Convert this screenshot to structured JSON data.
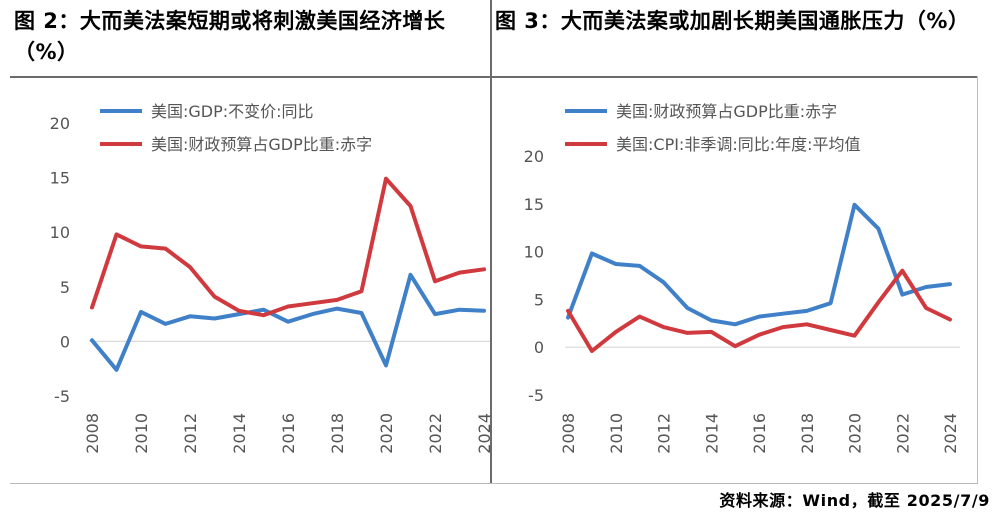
{
  "source": "资料来源：Wind，截至 2025/7/9",
  "chart_data": [
    {
      "type": "line",
      "title": "图 2：大而美法案短期或将刺激美国经济增长（%）",
      "xlabel": "",
      "ylabel": "",
      "x": [
        2008,
        2009,
        2010,
        2011,
        2012,
        2013,
        2014,
        2015,
        2016,
        2017,
        2018,
        2019,
        2020,
        2021,
        2022,
        2023,
        2024
      ],
      "xticks": [
        "2008",
        "2010",
        "2012",
        "2014",
        "2016",
        "2018",
        "2020",
        "2022",
        "2024"
      ],
      "ylim": [
        -5,
        20
      ],
      "yticks": [
        "-5",
        "0",
        "5",
        "10",
        "15",
        "20"
      ],
      "grid": false,
      "legend": "top-left",
      "series": [
        {
          "name": "美国:GDP:不变价:同比",
          "color": "#3F80C8",
          "values": [
            0.1,
            -2.6,
            2.7,
            1.6,
            2.3,
            2.1,
            2.5,
            2.9,
            1.8,
            2.5,
            3.0,
            2.6,
            -2.2,
            6.1,
            2.5,
            2.9,
            2.8
          ]
        },
        {
          "name": "美国:财政预算占GDP比重:赤字",
          "color": "#D0393E",
          "values": [
            3.1,
            9.8,
            8.7,
            8.5,
            6.8,
            4.1,
            2.8,
            2.4,
            3.2,
            3.5,
            3.8,
            4.6,
            14.9,
            12.4,
            5.5,
            6.3,
            6.6
          ]
        }
      ]
    },
    {
      "type": "line",
      "title": "图 3：大而美法案或加剧长期美国通胀压力（%）",
      "xlabel": "",
      "ylabel": "",
      "x": [
        2008,
        2009,
        2010,
        2011,
        2012,
        2013,
        2014,
        2015,
        2016,
        2017,
        2018,
        2019,
        2020,
        2021,
        2022,
        2023,
        2024
      ],
      "xticks": [
        "2008",
        "2010",
        "2012",
        "2014",
        "2016",
        "2018",
        "2020",
        "2022",
        "2024"
      ],
      "ylim": [
        -5,
        20
      ],
      "yticks": [
        "-5",
        "0",
        "5",
        "10",
        "15",
        "20"
      ],
      "grid": false,
      "legend": "top-left",
      "series": [
        {
          "name": "美国:财政预算占GDP比重:赤字",
          "color": "#3F80C8",
          "values": [
            3.1,
            9.8,
            8.7,
            8.5,
            6.8,
            4.1,
            2.8,
            2.4,
            3.2,
            3.5,
            3.8,
            4.6,
            14.9,
            12.4,
            5.5,
            6.3,
            6.6
          ]
        },
        {
          "name": "美国:CPI:非季调:同比:年度:平均值",
          "color": "#D0393E",
          "values": [
            3.8,
            -0.4,
            1.6,
            3.2,
            2.1,
            1.5,
            1.6,
            0.1,
            1.3,
            2.1,
            2.4,
            1.8,
            1.2,
            4.7,
            8.0,
            4.1,
            2.9
          ]
        }
      ]
    }
  ]
}
